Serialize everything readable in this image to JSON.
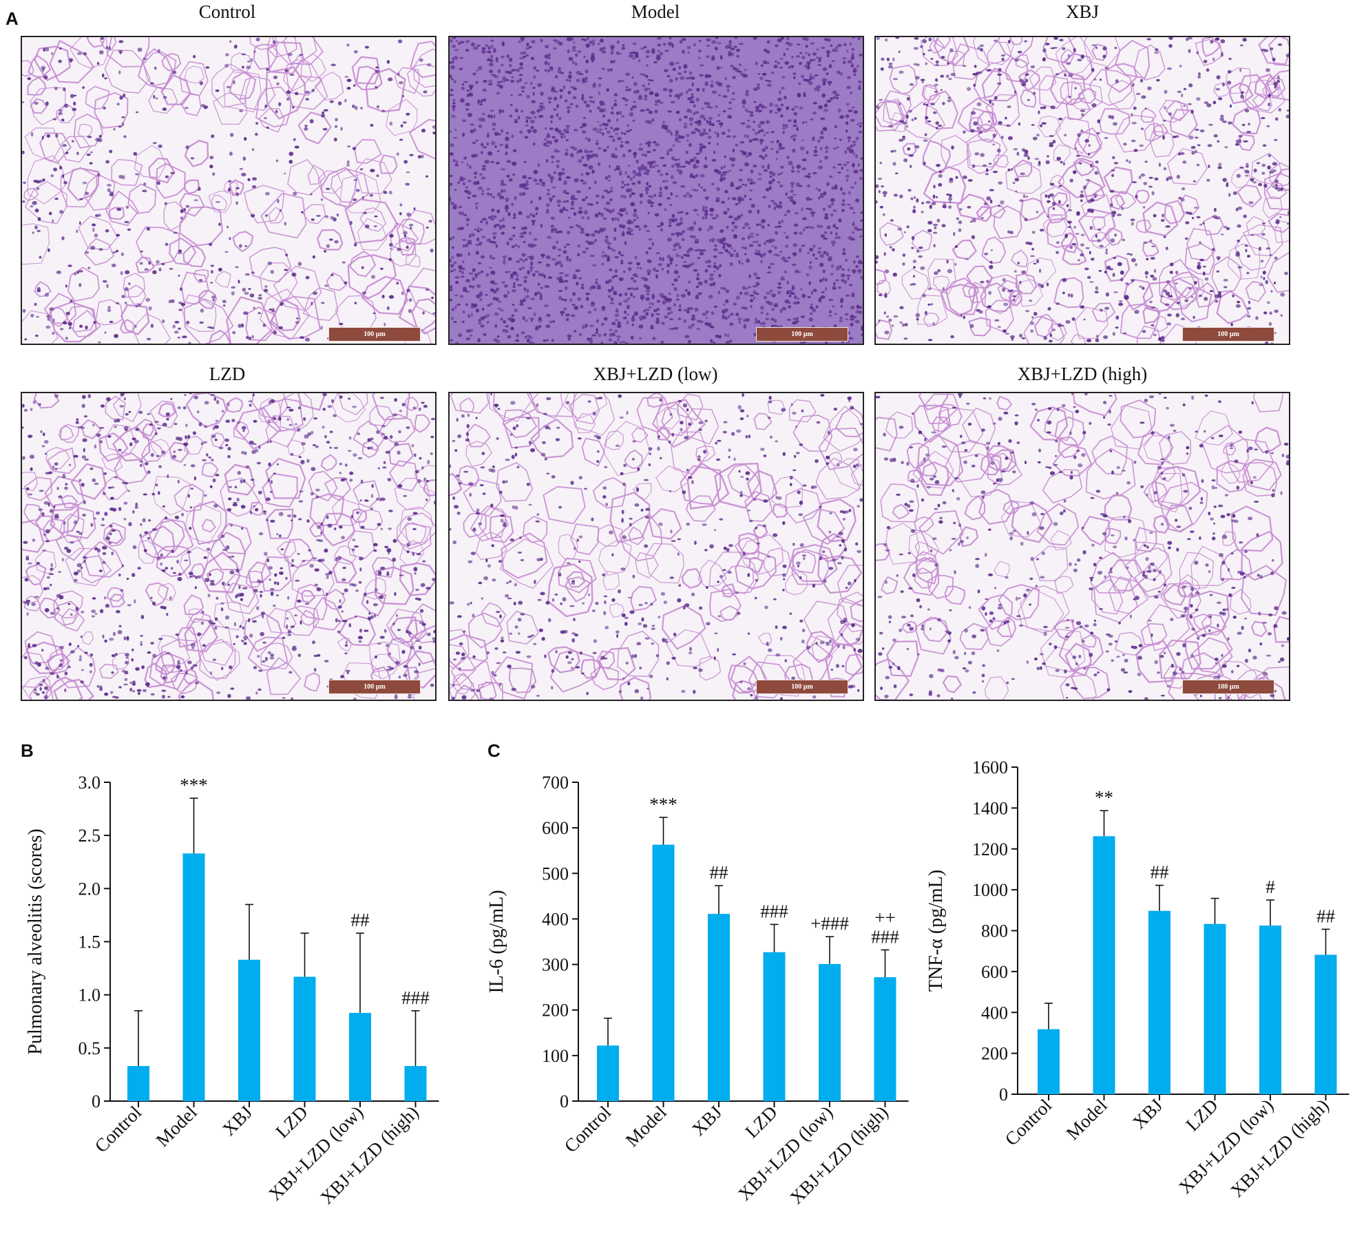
{
  "panels": {
    "a": "A",
    "b": "B",
    "c": "C"
  },
  "colors": {
    "bar": "#00ADEF",
    "axis": "#111111",
    "healthy_tissue_bg": "#f7f2f7",
    "dense_tissue_bg": "#9c7cc4",
    "nuclei": "#5b2d8c",
    "septa": "#c48bd0",
    "scalebar": "#8e4a3c"
  },
  "images": [
    {
      "title": "Control",
      "scale_label": "100 µm",
      "density": "low"
    },
    {
      "title": "Model",
      "scale_label": "100 µm",
      "density": "very-high"
    },
    {
      "title": "XBJ",
      "scale_label": "100 µm",
      "density": "medium"
    },
    {
      "title": "LZD",
      "scale_label": "100 µm",
      "density": "medium"
    },
    {
      "title": "XBJ+LZD (low)",
      "scale_label": "100 µm",
      "density": "low"
    },
    {
      "title": "XBJ+LZD (high)",
      "scale_label": "100 µm",
      "density": "low"
    }
  ],
  "chart_data": [
    {
      "type": "bar",
      "ylabel": "Pulmonary alveolitis (scores)",
      "categories": [
        "Control",
        "Model",
        "XBJ",
        "LZD",
        "XBJ+LZD (low)",
        "XBJ+LZD (high)"
      ],
      "values": [
        0.33,
        2.33,
        1.33,
        1.17,
        0.83,
        0.33
      ],
      "errors": [
        0.52,
        0.52,
        0.52,
        0.41,
        0.75,
        0.52
      ],
      "annotations": [
        "",
        "***",
        "",
        "",
        "##",
        "###"
      ],
      "ylim": [
        0,
        3.0
      ],
      "yticks": [
        0,
        0.5,
        1.0,
        1.5,
        2.0,
        2.5,
        3.0
      ],
      "ytick_labels": [
        "0",
        "0.5",
        "1.0",
        "1.5",
        "2.0",
        "2.5",
        "3.0"
      ]
    },
    {
      "type": "bar",
      "ylabel": "IL-6 (pg/mL)",
      "categories": [
        "Control",
        "Model",
        "XBJ",
        "LZD",
        "XBJ+LZD (low)",
        "XBJ+LZD (high)"
      ],
      "values": [
        122,
        563,
        411,
        327,
        301,
        272
      ],
      "errors": [
        60,
        60,
        62,
        61,
        60,
        60
      ],
      "annotations": [
        "",
        "***",
        "##",
        "###",
        "+###",
        "++\n###"
      ],
      "ylim": [
        0,
        700
      ],
      "yticks": [
        0,
        100,
        200,
        300,
        400,
        500,
        600,
        700
      ],
      "ytick_labels": [
        "0",
        "100",
        "200",
        "300",
        "400",
        "500",
        "600",
        "700"
      ]
    },
    {
      "type": "bar",
      "ylabel": "TNF-α (pg/mL)",
      "categories": [
        "Control",
        "Model",
        "XBJ",
        "LZD",
        "XBJ+LZD (low)",
        "XBJ+LZD (high)"
      ],
      "values": [
        318,
        1262,
        897,
        833,
        825,
        682
      ],
      "errors": [
        127,
        125,
        125,
        125,
        125,
        125
      ],
      "annotations": [
        "",
        "**",
        "##",
        "",
        "#",
        "##"
      ],
      "ylim": [
        0,
        1600
      ],
      "yticks": [
        0,
        200,
        400,
        600,
        800,
        1000,
        1200,
        1400,
        1600
      ],
      "ytick_labels": [
        "0",
        "200",
        "400",
        "600",
        "800",
        "1000",
        "1200",
        "1400",
        "1600"
      ]
    }
  ]
}
